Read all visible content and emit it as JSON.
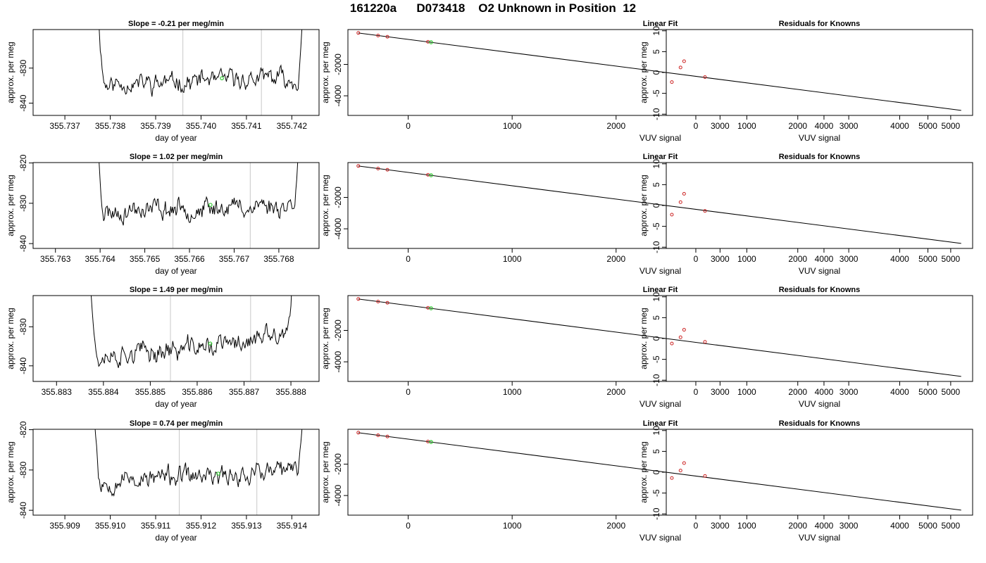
{
  "header": {
    "title": "161220a      D073418    O2 Unknown in Position  12"
  },
  "labels": {
    "linear_fit_title": "Linear Fit",
    "residuals_title": "Residuals for Knowns",
    "day_of_year": "day of year",
    "vuv_signal": "VUV signal",
    "approx_per_meg": "approx. per meg"
  },
  "colors": {
    "trace": "#000000",
    "fit_line": "#000000",
    "known_points": "#cc2222",
    "unknown_point": "#33cc33",
    "cycle_markers": "#c8c8c8"
  },
  "chart_data": [
    {
      "type": "line",
      "title": "Slope =  -0.21  per meg/min",
      "xlabel": "day of year",
      "ylabel": "approx. per meg",
      "xlim": [
        355.7363,
        355.7426
      ],
      "ylim": [
        -843.5,
        -819
      ],
      "xticks": [
        "355.737",
        "355.738",
        "355.739",
        "355.740",
        "355.741",
        "355.742"
      ],
      "yticks": [
        "-830",
        "-840"
      ],
      "trace": {
        "start": 355.7377,
        "end": 355.7423,
        "step": 2e-05,
        "base_start": -834.5,
        "base_end": -832.8,
        "noise": 2.5,
        "seed": 11
      },
      "cycle_markers": [
        355.7396,
        355.74133
      ],
      "unknown_point": {
        "x": 355.74046,
        "y": -832.9
      }
    },
    {
      "type": "scatter",
      "title": "Linear Fit",
      "xlabel": "VUV signal",
      "ylabel": "approx. per meg",
      "xlim": [
        -580,
        5430
      ],
      "ylim": [
        -5250,
        220
      ],
      "xticks": [
        "0",
        "1000",
        "2000",
        "3000",
        "4000",
        "5000"
      ],
      "yticks": [
        "-2000",
        "-4000"
      ],
      "line": [
        [
          -480,
          0
        ],
        [
          5320,
          -4930
        ]
      ],
      "knowns": [
        {
          "x": -480,
          "y": 5
        },
        {
          "x": -290,
          "y": -160
        },
        {
          "x": -200,
          "y": -240
        },
        {
          "x": 190,
          "y": -558
        }
      ],
      "unknown": {
        "x": 220,
        "y": -590
      }
    },
    {
      "type": "scatter",
      "title": "Residuals for Knowns",
      "xlabel": "VUV signal",
      "ylabel": "approx. per meg",
      "xlim": [
        -580,
        5430
      ],
      "ylim": [
        -10.3,
        10.3
      ],
      "xticks": [
        "0",
        "1000",
        "2000",
        "3000",
        "4000",
        "5000"
      ],
      "yticks": [
        "-10",
        "-5",
        "0",
        "5",
        "10"
      ],
      "points": [
        {
          "x": -470,
          "y": -2.3
        },
        {
          "x": -300,
          "y": 1.2
        },
        {
          "x": -230,
          "y": 2.7
        },
        {
          "x": 180,
          "y": -1.1
        }
      ]
    },
    {
      "type": "line",
      "title": "Slope =  1.02  per meg/min",
      "xlabel": "day of year",
      "ylabel": "approx. per meg",
      "xlim": [
        355.7625,
        355.7689
      ],
      "ylim": [
        -841.2,
        -819.9
      ],
      "xticks": [
        "355.763",
        "355.764",
        "355.765",
        "355.766",
        "355.767",
        "355.768"
      ],
      "yticks": [
        "-820",
        "-830",
        "-840"
      ],
      "trace": {
        "start": 355.7639,
        "end": 355.7685,
        "step": 2e-05,
        "base_start": -832.2,
        "base_end": -830.2,
        "noise": 2.3,
        "seed": 23
      },
      "cycle_markers": [
        355.76563,
        355.76736
      ],
      "unknown_point": {
        "x": 355.76647,
        "y": -830.4
      }
    },
    {
      "type": "scatter",
      "title": "Linear Fit",
      "xlabel": "VUV signal",
      "ylabel": "approx. per meg",
      "xlim": [
        -580,
        5430
      ],
      "ylim": [
        -5250,
        220
      ],
      "xticks": [
        "0",
        "1000",
        "2000",
        "3000",
        "4000",
        "5000"
      ],
      "yticks": [
        "-2000",
        "-4000"
      ],
      "line": [
        [
          -480,
          0
        ],
        [
          5320,
          -4930
        ]
      ],
      "knowns": [
        {
          "x": -480,
          "y": 5
        },
        {
          "x": -290,
          "y": -160
        },
        {
          "x": -200,
          "y": -240
        },
        {
          "x": 190,
          "y": -558
        }
      ],
      "unknown": {
        "x": 220,
        "y": -590
      }
    },
    {
      "type": "scatter",
      "title": "Residuals for Knowns",
      "xlabel": "VUV signal",
      "ylabel": "approx. per meg",
      "xlim": [
        -580,
        5430
      ],
      "ylim": [
        -10.3,
        10.3
      ],
      "xticks": [
        "0",
        "1000",
        "2000",
        "3000",
        "4000",
        "5000"
      ],
      "yticks": [
        "-10",
        "-5",
        "0",
        "5",
        "10"
      ],
      "points": [
        {
          "x": -470,
          "y": -2.2
        },
        {
          "x": -300,
          "y": 0.8
        },
        {
          "x": -230,
          "y": 2.8
        },
        {
          "x": 180,
          "y": -1.3
        }
      ]
    },
    {
      "type": "line",
      "title": "Slope =  1.49  per meg/min",
      "xlabel": "day of year",
      "ylabel": "approx. per meg",
      "xlim": [
        355.8825,
        355.8886
      ],
      "ylim": [
        -844,
        -822
      ],
      "xticks": [
        "355.883",
        "355.884",
        "355.885",
        "355.886",
        "355.887",
        "355.888"
      ],
      "yticks": [
        "-830",
        "-840"
      ],
      "trace": {
        "start": 355.8837,
        "end": 355.8881,
        "step": 2e-05,
        "base_start": -838.2,
        "base_end": -832.5,
        "noise": 2.6,
        "seed": 37
      },
      "cycle_markers": [
        355.88543,
        355.88714
      ],
      "unknown_point": {
        "x": 355.88628,
        "y": -834.3
      }
    },
    {
      "type": "scatter",
      "title": "Linear Fit",
      "xlabel": "VUV signal",
      "ylabel": "approx. per meg",
      "xlim": [
        -580,
        5430
      ],
      "ylim": [
        -5250,
        220
      ],
      "xticks": [
        "0",
        "1000",
        "2000",
        "3000",
        "4000",
        "5000"
      ],
      "yticks": [
        "-2000",
        "-4000"
      ],
      "line": [
        [
          -480,
          0
        ],
        [
          5320,
          -4930
        ]
      ],
      "knowns": [
        {
          "x": -480,
          "y": 5
        },
        {
          "x": -290,
          "y": -160
        },
        {
          "x": -200,
          "y": -240
        },
        {
          "x": 190,
          "y": -558
        }
      ],
      "unknown": {
        "x": 220,
        "y": -590
      }
    },
    {
      "type": "scatter",
      "title": "Residuals for Knowns",
      "xlabel": "VUV signal",
      "ylabel": "approx. per meg",
      "xlim": [
        -580,
        5430
      ],
      "ylim": [
        -10.3,
        10.3
      ],
      "xticks": [
        "0",
        "1000",
        "2000",
        "3000",
        "4000",
        "5000"
      ],
      "yticks": [
        "-10",
        "-5",
        "0",
        "5",
        "10"
      ],
      "points": [
        {
          "x": -470,
          "y": -1.2
        },
        {
          "x": -300,
          "y": 0.3
        },
        {
          "x": -230,
          "y": 2.1
        },
        {
          "x": 180,
          "y": -0.8
        }
      ]
    },
    {
      "type": "line",
      "title": "Slope =  0.74  per meg/min",
      "xlabel": "day of year",
      "ylabel": "approx. per meg",
      "xlim": [
        355.9083,
        355.9146
      ],
      "ylim": [
        -841.2,
        -819.9
      ],
      "xticks": [
        "355.909",
        "355.910",
        "355.911",
        "355.912",
        "355.913",
        "355.914"
      ],
      "yticks": [
        "-820",
        "-830",
        "-840"
      ],
      "trace": {
        "start": 355.9096,
        "end": 355.9143,
        "step": 2e-05,
        "base_start": -832.8,
        "base_end": -830.3,
        "noise": 2.3,
        "seed": 53
      },
      "cycle_markers": [
        355.91152,
        355.91323
      ],
      "unknown_point": {
        "x": 355.91238,
        "y": -830.9
      }
    },
    {
      "type": "scatter",
      "title": "Linear Fit",
      "xlabel": "VUV signal",
      "ylabel": "approx. per meg",
      "xlim": [
        -580,
        5430
      ],
      "ylim": [
        -5250,
        220
      ],
      "xticks": [
        "0",
        "1000",
        "2000",
        "3000",
        "4000",
        "5000"
      ],
      "yticks": [
        "-2000",
        "-4000"
      ],
      "line": [
        [
          -480,
          0
        ],
        [
          5320,
          -4930
        ]
      ],
      "knowns": [
        {
          "x": -480,
          "y": 5
        },
        {
          "x": -290,
          "y": -160
        },
        {
          "x": -200,
          "y": -240
        },
        {
          "x": 190,
          "y": -558
        }
      ],
      "unknown": {
        "x": 220,
        "y": -590
      }
    },
    {
      "type": "scatter",
      "title": "Residuals for Knowns",
      "xlabel": "VUV signal",
      "ylabel": "approx. per meg",
      "xlim": [
        -580,
        5430
      ],
      "ylim": [
        -10.3,
        10.3
      ],
      "xticks": [
        "0",
        "1000",
        "2000",
        "3000",
        "4000",
        "5000"
      ],
      "yticks": [
        "-10",
        "-5",
        "0",
        "5",
        "10"
      ],
      "points": [
        {
          "x": -470,
          "y": -1.4
        },
        {
          "x": -300,
          "y": 0.4
        },
        {
          "x": -230,
          "y": 2.2
        },
        {
          "x": 180,
          "y": -0.9
        }
      ]
    }
  ]
}
